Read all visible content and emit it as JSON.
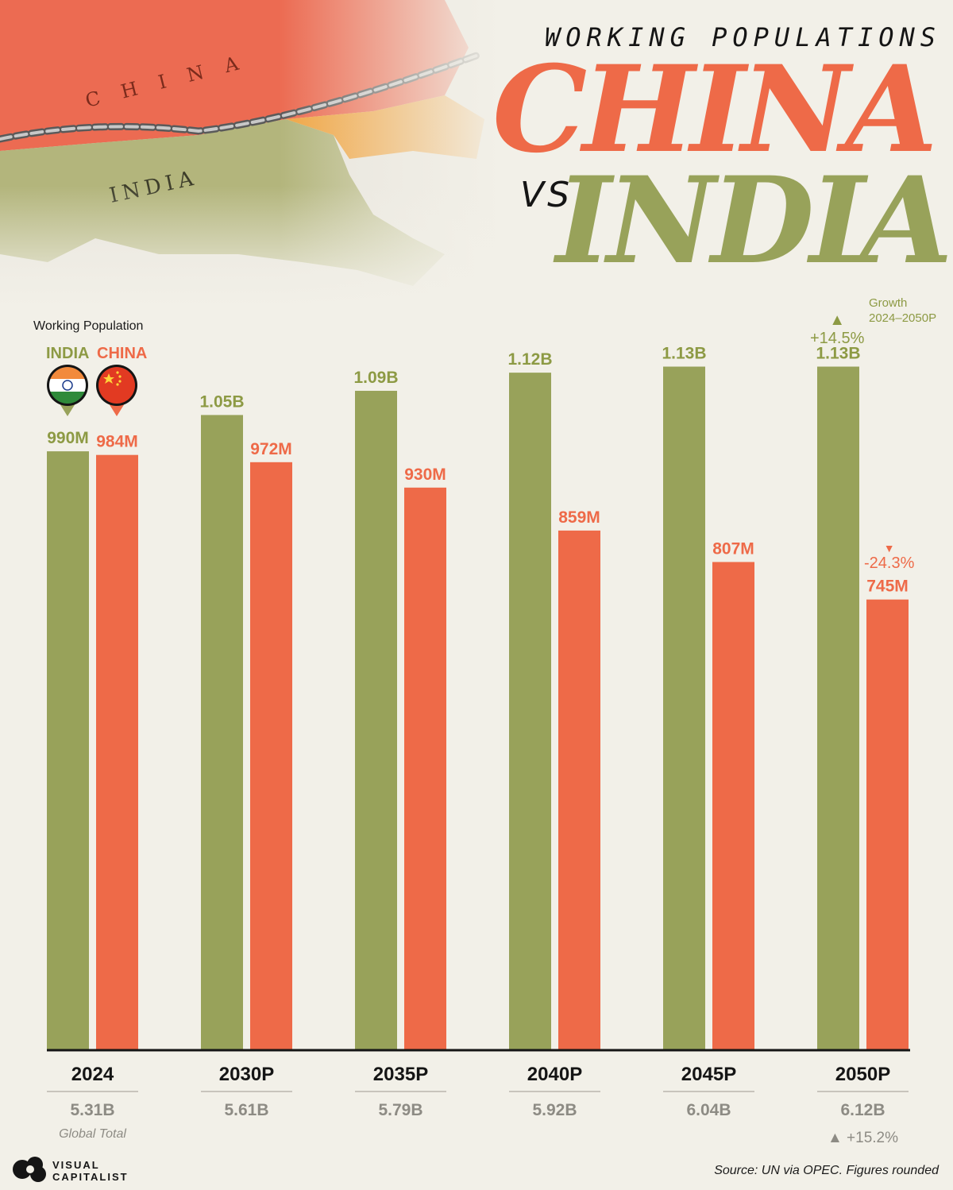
{
  "header": {
    "subtitle": "WORKING POPULATIONS",
    "title_china": "CHINA",
    "title_vs": "VS",
    "title_india": "INDIA"
  },
  "legend": {
    "title": "Working Population",
    "india_label": "INDIA",
    "china_label": "CHINA"
  },
  "colors": {
    "india": "#98a25a",
    "china": "#ee6a48",
    "india_text": "#8d9a44",
    "background": "#f2f0e8",
    "axis": "#151515"
  },
  "growth": {
    "label_line1": "Growth",
    "label_line2": "2024–2050P",
    "india": "+14.5%",
    "china": "-24.3%"
  },
  "global_note": {
    "label": "Global Total",
    "change": "+15.2%"
  },
  "footer": {
    "source": "Source: UN via OPEC. Figures rounded",
    "brand_line1": "VISUAL",
    "brand_line2": "CAPITALIST"
  },
  "chart_data": {
    "type": "bar",
    "title": "Working Populations: China vs India",
    "ylabel": "Working Population",
    "ylim": [
      0,
      1200
    ],
    "unit": "millions",
    "categories": [
      "2024",
      "2030P",
      "2035P",
      "2040P",
      "2045P",
      "2050P"
    ],
    "series": [
      {
        "name": "INDIA",
        "values": [
          990,
          1050,
          1090,
          1120,
          1130,
          1130
        ],
        "labels": [
          "990M",
          "1.05B",
          "1.09B",
          "1.12B",
          "1.13B",
          "1.13B"
        ]
      },
      {
        "name": "CHINA",
        "values": [
          984,
          972,
          930,
          859,
          807,
          745
        ],
        "labels": [
          "984M",
          "972M",
          "930M",
          "859M",
          "807M",
          "745M"
        ]
      }
    ],
    "global_total": [
      5.31,
      5.61,
      5.79,
      5.92,
      6.04,
      6.12
    ],
    "global_total_labels": [
      "5.31B",
      "5.61B",
      "5.79B",
      "5.92B",
      "6.04B",
      "6.12B"
    ]
  }
}
